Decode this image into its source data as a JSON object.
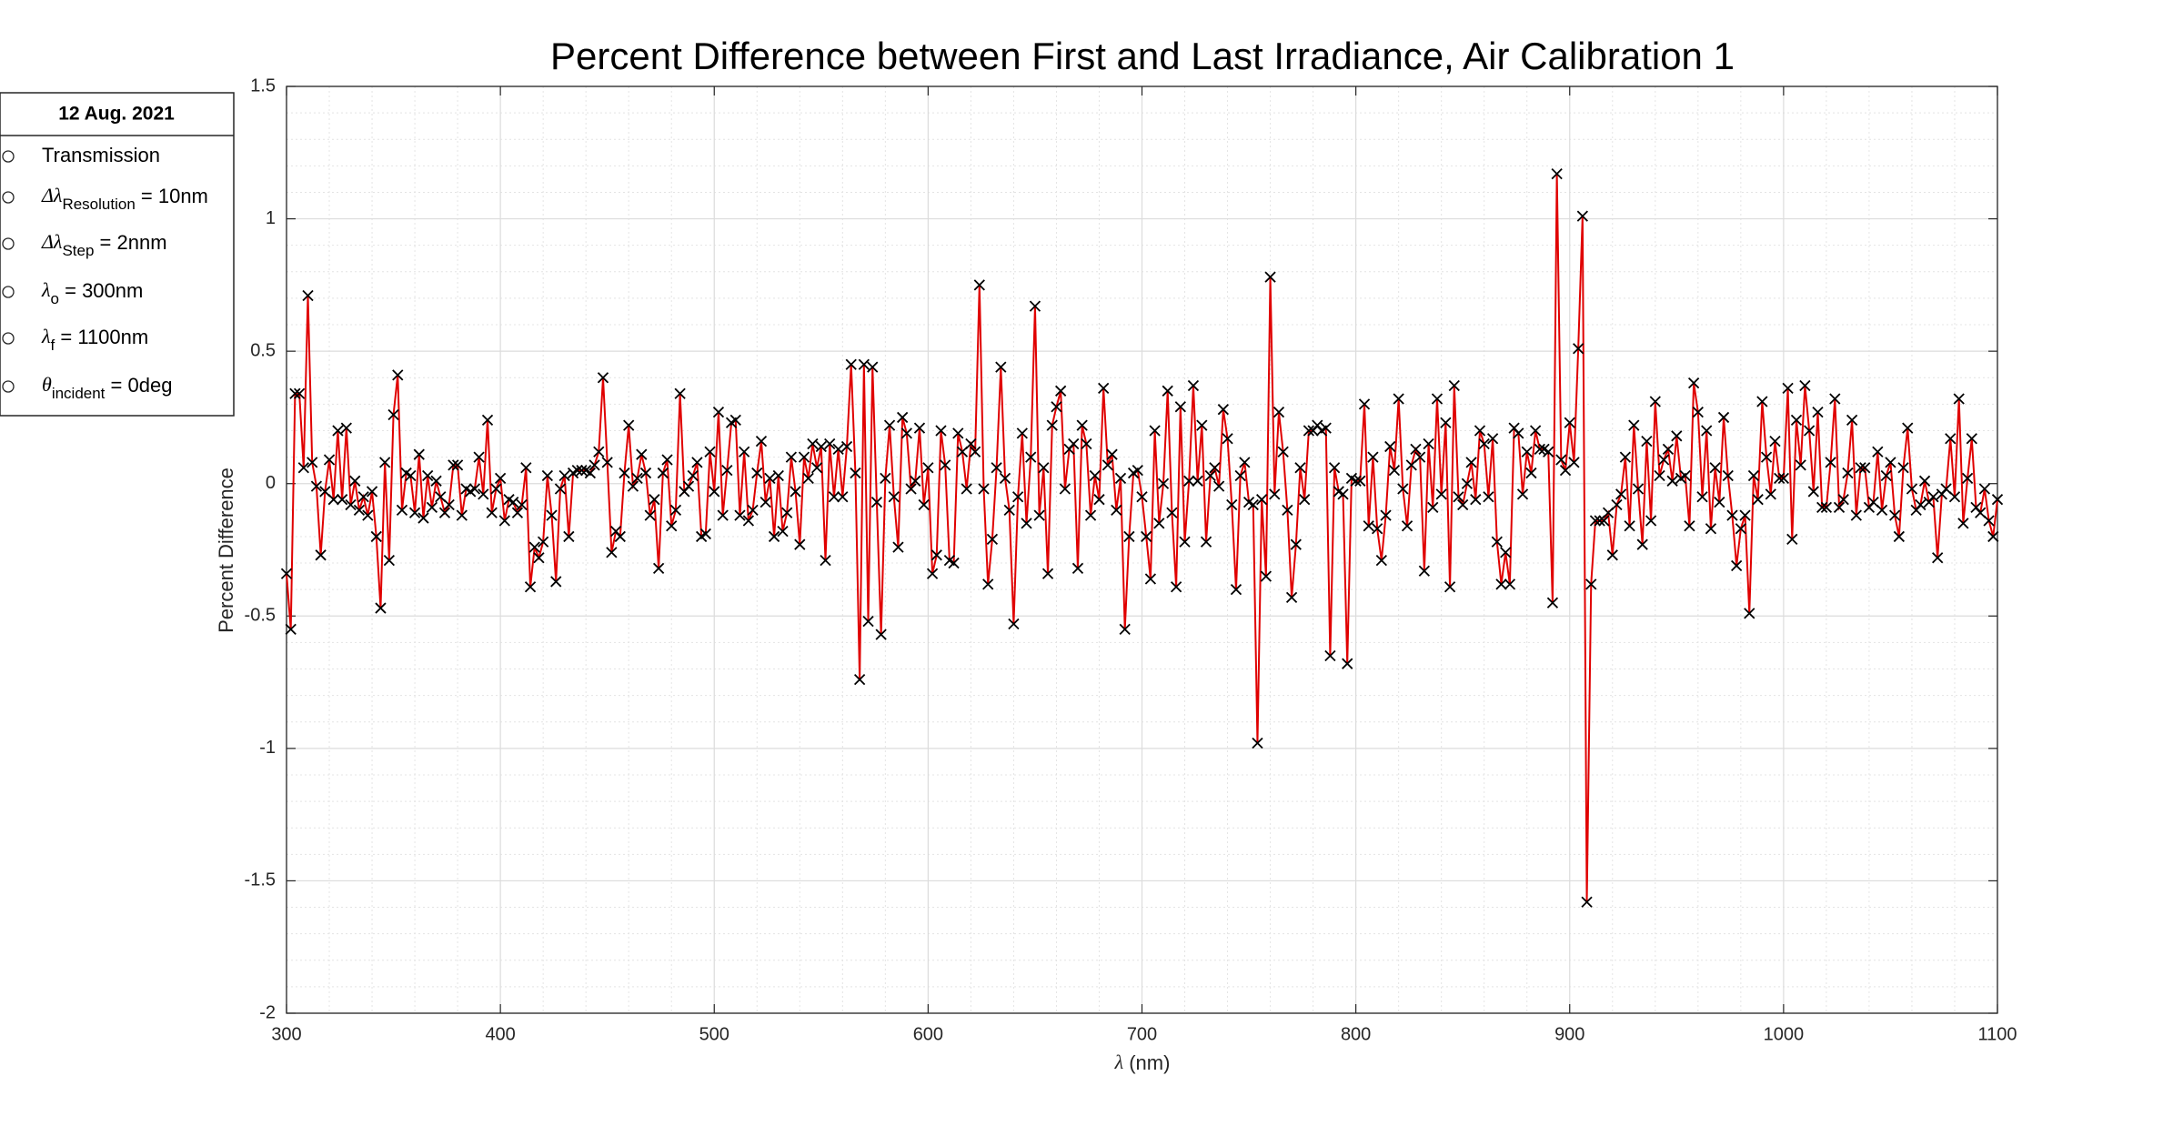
{
  "chart_data": {
    "type": "line",
    "title": "Percent Difference between First and Last Irradiance,  Air Calibration 1",
    "xlabel": {
      "symbol": "λ",
      "rest": " (nm)"
    },
    "ylabel": "Percent Difference",
    "color": "#e00000",
    "marker_color": "#000000",
    "marker": "x",
    "grid": true,
    "minor_grid": true,
    "xlim": [
      300,
      1100
    ],
    "xticks": [
      300,
      400,
      500,
      600,
      700,
      800,
      900,
      1000,
      1100
    ],
    "ylim": [
      -2,
      1.5
    ],
    "yticks": [
      -2,
      -1.5,
      -1,
      -0.5,
      0,
      0.5,
      1,
      1.5
    ],
    "info_box": {
      "header": "12 Aug. 2021",
      "rows": [
        {
          "text": "Transmission"
        },
        {
          "symbol": "Δλ",
          "sub": "Resolution",
          "text": " = 10nm"
        },
        {
          "symbol": "Δλ",
          "sub": "Step",
          "text": " = 2nnm"
        },
        {
          "symbol": "λ",
          "sub": "o",
          "text": " = 300nm"
        },
        {
          "symbol": "λ",
          "sub": "f",
          "text": " = 1100nm"
        },
        {
          "symbol": "θ",
          "sub": "incident",
          "text": " = 0deg"
        }
      ]
    },
    "x": [
      300,
      302,
      304,
      306,
      308,
      310,
      312,
      314,
      316,
      318,
      320,
      322,
      324,
      326,
      328,
      330,
      332,
      334,
      336,
      338,
      340,
      342,
      344,
      346,
      348,
      350,
      352,
      354,
      356,
      358,
      360,
      362,
      364,
      366,
      368,
      370,
      372,
      374,
      376,
      378,
      380,
      382,
      384,
      386,
      388,
      390,
      392,
      394,
      396,
      398,
      400,
      402,
      404,
      406,
      408,
      410,
      412,
      414,
      416,
      418,
      420,
      422,
      424,
      426,
      428,
      430,
      432,
      434,
      436,
      438,
      440,
      442,
      444,
      446,
      448,
      450,
      452,
      454,
      456,
      458,
      460,
      462,
      464,
      466,
      468,
      470,
      472,
      474,
      476,
      478,
      480,
      482,
      484,
      486,
      488,
      490,
      492,
      494,
      496,
      498,
      500,
      502,
      504,
      506,
      508,
      510,
      512,
      514,
      516,
      518,
      520,
      522,
      524,
      526,
      528,
      530,
      532,
      534,
      536,
      538,
      540,
      542,
      544,
      546,
      548,
      550,
      552,
      554,
      556,
      558,
      560,
      562,
      564,
      566,
      568,
      570,
      572,
      574,
      576,
      578,
      580,
      582,
      584,
      586,
      588,
      590,
      592,
      594,
      596,
      598,
      600,
      602,
      604,
      606,
      608,
      610,
      612,
      614,
      616,
      618,
      620,
      622,
      624,
      626,
      628,
      630,
      632,
      634,
      636,
      638,
      640,
      642,
      644,
      646,
      648,
      650,
      652,
      654,
      656,
      658,
      660,
      662,
      664,
      666,
      668,
      670,
      672,
      674,
      676,
      678,
      680,
      682,
      684,
      686,
      688,
      690,
      692,
      694,
      696,
      698,
      700,
      702,
      704,
      706,
      708,
      710,
      712,
      714,
      716,
      718,
      720,
      722,
      724,
      726,
      728,
      730,
      732,
      734,
      736,
      738,
      740,
      742,
      744,
      746,
      748,
      750,
      752,
      754,
      756,
      758,
      760,
      762,
      764,
      766,
      768,
      770,
      772,
      774,
      776,
      778,
      780,
      782,
      784,
      786,
      788,
      790,
      792,
      794,
      796,
      798,
      800,
      802,
      804,
      806,
      808,
      810,
      812,
      814,
      816,
      818,
      820,
      822,
      824,
      826,
      828,
      830,
      832,
      834,
      836,
      838,
      840,
      842,
      844,
      846,
      848,
      850,
      852,
      854,
      856,
      858,
      860,
      862,
      864,
      866,
      868,
      870,
      872,
      874,
      876,
      878,
      880,
      882,
      884,
      886,
      888,
      890,
      892,
      894,
      896,
      898,
      900,
      902,
      904,
      906,
      908,
      910,
      912,
      914,
      916,
      918,
      920,
      922,
      924,
      926,
      928,
      930,
      932,
      934,
      936,
      938,
      940,
      942,
      944,
      946,
      948,
      950,
      952,
      954,
      956,
      958,
      960,
      962,
      964,
      966,
      968,
      970,
      972,
      974,
      976,
      978,
      980,
      982,
      984,
      986,
      988,
      990,
      992,
      994,
      996,
      998,
      1000,
      1002,
      1004,
      1006,
      1008,
      1010,
      1012,
      1014,
      1016,
      1018,
      1020,
      1022,
      1024,
      1026,
      1028,
      1030,
      1032,
      1034,
      1036,
      1038,
      1040,
      1042,
      1044,
      1046,
      1048,
      1050,
      1052,
      1054,
      1056,
      1058,
      1060,
      1062,
      1064,
      1066,
      1068,
      1070,
      1072,
      1074,
      1076,
      1078,
      1080,
      1082,
      1084,
      1086,
      1088,
      1090,
      1092,
      1094,
      1096,
      1098,
      1100
    ],
    "values": [
      -0.34,
      -0.55,
      0.34,
      0.34,
      0.06,
      0.71,
      0.08,
      -0.01,
      -0.27,
      -0.03,
      0.09,
      -0.06,
      0.2,
      -0.06,
      0.21,
      -0.08,
      0.01,
      -0.1,
      -0.05,
      -0.12,
      -0.03,
      -0.2,
      -0.47,
      0.08,
      -0.29,
      0.26,
      0.41,
      -0.1,
      0.04,
      0.03,
      -0.11,
      0.11,
      -0.13,
      0.03,
      -0.09,
      0.01,
      -0.05,
      -0.11,
      -0.08,
      0.07,
      0.07,
      -0.12,
      -0.02,
      -0.03,
      -0.02,
      0.1,
      -0.04,
      0.24,
      -0.11,
      -0.02,
      0.02,
      -0.14,
      -0.06,
      -0.07,
      -0.11,
      -0.08,
      0.06,
      -0.39,
      -0.24,
      -0.28,
      -0.22,
      0.03,
      -0.12,
      -0.37,
      -0.02,
      0.03,
      -0.2,
      0.04,
      0.05,
      0.05,
      0.05,
      0.04,
      0.07,
      0.12,
      0.4,
      0.08,
      -0.26,
      -0.18,
      -0.2,
      0.04,
      0.22,
      -0.01,
      0.02,
      0.11,
      0.04,
      -0.12,
      -0.06,
      -0.32,
      0.04,
      0.09,
      -0.16,
      -0.1,
      0.34,
      -0.03,
      -0.01,
      0.03,
      0.08,
      -0.2,
      -0.19,
      0.12,
      -0.03,
      0.27,
      -0.12,
      0.05,
      0.23,
      0.24,
      -0.12,
      0.12,
      -0.14,
      -0.1,
      0.04,
      0.16,
      -0.07,
      0.02,
      -0.2,
      0.03,
      -0.18,
      -0.11,
      0.1,
      -0.03,
      -0.23,
      0.1,
      0.02,
      0.15,
      0.06,
      0.14,
      -0.29,
      0.15,
      -0.05,
      0.13,
      -0.05,
      0.14,
      0.45,
      0.04,
      -0.74,
      0.45,
      -0.52,
      0.44,
      -0.07,
      -0.57,
      0.02,
      0.22,
      -0.05,
      -0.24,
      0.25,
      0.19,
      -0.02,
      0.01,
      0.21,
      -0.08,
      0.06,
      -0.34,
      -0.27,
      0.2,
      0.07,
      -0.29,
      -0.3,
      0.19,
      0.12,
      -0.02,
      0.15,
      0.12,
      0.75,
      -0.02,
      -0.38,
      -0.21,
      0.06,
      0.44,
      0.02,
      -0.1,
      -0.53,
      -0.05,
      0.19,
      -0.15,
      0.1,
      0.67,
      -0.12,
      0.06,
      -0.34,
      0.22,
      0.29,
      0.35,
      -0.02,
      0.13,
      0.15,
      -0.32,
      0.22,
      0.15,
      -0.12,
      0.03,
      -0.06,
      0.36,
      0.07,
      0.11,
      -0.1,
      0.02,
      -0.55,
      -0.2,
      0.04,
      0.05,
      -0.05,
      -0.2,
      -0.36,
      0.2,
      -0.15,
      0.0,
      0.35,
      -0.11,
      -0.39,
      0.29,
      -0.22,
      0.01,
      0.37,
      0.01,
      0.22,
      -0.22,
      0.03,
      0.06,
      -0.01,
      0.28,
      0.17,
      -0.08,
      -0.4,
      0.03,
      0.08,
      -0.07,
      -0.08,
      -0.98,
      -0.06,
      -0.35,
      0.78,
      -0.04,
      0.27,
      0.12,
      -0.1,
      -0.43,
      -0.23,
      0.06,
      -0.06,
      0.2,
      0.2,
      0.22,
      0.2,
      0.21,
      -0.65,
      0.06,
      -0.03,
      -0.04,
      -0.68,
      0.02,
      0.01,
      0.01,
      0.3,
      -0.16,
      0.1,
      -0.17,
      -0.29,
      -0.12,
      0.14,
      0.05,
      0.32,
      -0.02,
      -0.16,
      0.07,
      0.13,
      0.1,
      -0.33,
      0.15,
      -0.09,
      0.32,
      -0.04,
      0.23,
      -0.39,
      0.37,
      -0.05,
      -0.08,
      0.0,
      0.08,
      -0.06,
      0.2,
      0.15,
      -0.05,
      0.17,
      -0.22,
      -0.38,
      -0.26,
      -0.38,
      0.21,
      0.19,
      -0.04,
      0.12,
      0.04,
      0.2,
      0.13,
      0.13,
      0.12,
      -0.45,
      1.17,
      0.09,
      0.05,
      0.23,
      0.08,
      0.51,
      1.01,
      -1.58,
      -0.38,
      -0.14,
      -0.14,
      -0.14,
      -0.11,
      -0.27,
      -0.08,
      -0.04,
      0.1,
      -0.16,
      0.22,
      -0.02,
      -0.23,
      0.16,
      -0.14,
      0.31,
      0.03,
      0.09,
      0.13,
      0.01,
      0.18,
      0.02,
      0.03,
      -0.16,
      0.38,
      0.27,
      -0.05,
      0.2,
      -0.17,
      0.06,
      -0.07,
      0.25,
      0.03,
      -0.12,
      -0.31,
      -0.17,
      -0.12,
      -0.49,
      0.03,
      -0.06,
      0.31,
      0.1,
      -0.04,
      0.16,
      0.02,
      0.02,
      0.36,
      -0.21,
      0.24,
      0.07,
      0.37,
      0.2,
      -0.03,
      0.27,
      -0.09,
      -0.09,
      0.08,
      0.32,
      -0.09,
      -0.06,
      0.04,
      0.24,
      -0.12,
      0.06,
      0.06,
      -0.09,
      -0.07,
      0.12,
      -0.1,
      0.03,
      0.08,
      -0.12,
      -0.2,
      0.06,
      0.21,
      -0.02,
      -0.1,
      -0.08,
      0.01,
      -0.07,
      -0.05,
      -0.28,
      -0.04,
      -0.02,
      0.17,
      -0.05,
      0.32,
      -0.15,
      0.02,
      0.17,
      -0.09,
      -0.11,
      -0.02,
      -0.14,
      -0.2,
      -0.06
    ]
  }
}
